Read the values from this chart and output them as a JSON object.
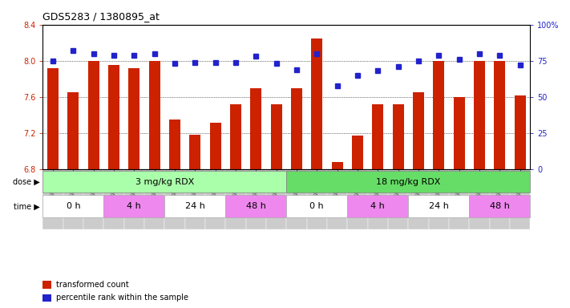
{
  "title": "GDS5283 / 1380895_at",
  "samples": [
    "GSM306952",
    "GSM306954",
    "GSM306956",
    "GSM306958",
    "GSM306960",
    "GSM306962",
    "GSM306964",
    "GSM306966",
    "GSM306968",
    "GSM306970",
    "GSM306972",
    "GSM306974",
    "GSM306976",
    "GSM306978",
    "GSM306980",
    "GSM306982",
    "GSM306984",
    "GSM306986",
    "GSM306988",
    "GSM306990",
    "GSM306992",
    "GSM306994",
    "GSM306996",
    "GSM306998"
  ],
  "bar_values": [
    7.92,
    7.65,
    8.0,
    7.95,
    7.92,
    8.0,
    7.35,
    7.18,
    7.32,
    7.52,
    7.7,
    7.52,
    7.7,
    8.25,
    6.88,
    7.17,
    7.52,
    7.52,
    7.65,
    8.0,
    7.6,
    8.0,
    8.0,
    7.62
  ],
  "percentile_values": [
    75,
    82,
    80,
    79,
    79,
    80,
    73,
    74,
    74,
    74,
    78,
    73,
    69,
    80,
    58,
    65,
    68,
    71,
    75,
    79,
    76,
    80,
    79,
    72
  ],
  "ylim_left": [
    6.8,
    8.4
  ],
  "ylim_right": [
    0,
    100
  ],
  "yticks_left": [
    6.8,
    7.2,
    7.6,
    8.0,
    8.4
  ],
  "yticks_right": [
    0,
    25,
    50,
    75,
    100
  ],
  "bar_color": "#cc2200",
  "dot_color": "#2222cc",
  "dose_groups": [
    {
      "label": "3 mg/kg RDX",
      "start": 0,
      "end": 12,
      "color": "#aaffaa"
    },
    {
      "label": "18 mg/kg RDX",
      "start": 12,
      "end": 24,
      "color": "#66dd66"
    }
  ],
  "time_groups": [
    {
      "label": "0 h",
      "start": 0,
      "end": 3,
      "color": "#ffffff"
    },
    {
      "label": "4 h",
      "start": 3,
      "end": 6,
      "color": "#ee88ee"
    },
    {
      "label": "24 h",
      "start": 6,
      "end": 9,
      "color": "#ffffff"
    },
    {
      "label": "48 h",
      "start": 9,
      "end": 12,
      "color": "#ee88ee"
    },
    {
      "label": "0 h",
      "start": 12,
      "end": 15,
      "color": "#ffffff"
    },
    {
      "label": "4 h",
      "start": 15,
      "end": 18,
      "color": "#ee88ee"
    },
    {
      "label": "24 h",
      "start": 18,
      "end": 21,
      "color": "#ffffff"
    },
    {
      "label": "48 h",
      "start": 21,
      "end": 24,
      "color": "#ee88ee"
    }
  ],
  "legend_items": [
    {
      "label": "transformed count",
      "color": "#cc2200",
      "marker": "s"
    },
    {
      "label": "percentile rank within the sample",
      "color": "#2222cc",
      "marker": "s"
    }
  ],
  "grid_lines": [
    7.2,
    7.6,
    8.0
  ],
  "label_color_left": "#cc2200",
  "label_color_right": "#2222cc"
}
